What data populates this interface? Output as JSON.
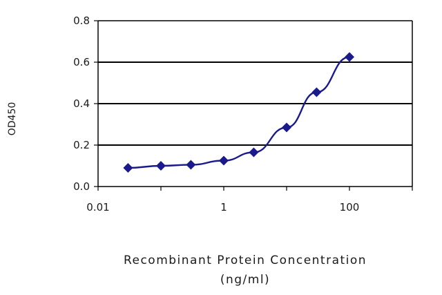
{
  "chart_data": {
    "type": "line",
    "xscale": "log",
    "xlim": [
      0.01,
      1000
    ],
    "ylim": [
      0,
      0.8
    ],
    "xticks": [
      "0.01",
      "1",
      "100"
    ],
    "yticks": [
      "0.0",
      "0.2",
      "0.4",
      "0.6",
      "0.8"
    ],
    "ylabel": "OD450",
    "xlabel_line1": "Recombinant Protein Concentration",
    "xlabel_line2": "(ng/ml)",
    "grid": "horizontal",
    "series": [
      {
        "x": [
          0.03,
          0.1,
          0.3,
          1,
          3,
          10,
          30,
          100
        ],
        "y": [
          0.09,
          0.1,
          0.105,
          0.125,
          0.165,
          0.285,
          0.455,
          0.625
        ]
      }
    ],
    "colors": {
      "series": "#1a1a8c",
      "gridline": "#000000",
      "axis": "#000000"
    }
  }
}
